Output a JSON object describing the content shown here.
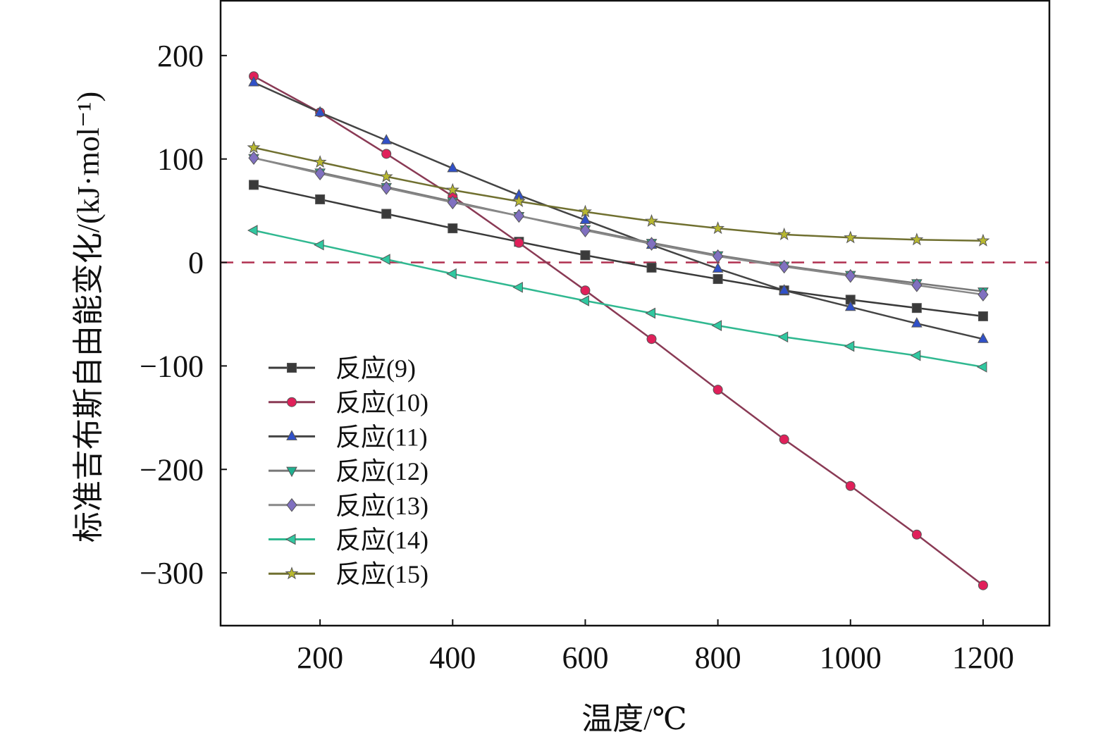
{
  "chart_data": {
    "type": "line",
    "title": "",
    "xlabel": "温度/℃",
    "ylabel": "标准吉布斯自由能变化/(kJ·mol⁻¹)",
    "xlim": [
      50,
      1300
    ],
    "ylim": [
      -351,
      253
    ],
    "xticks": [
      200,
      400,
      600,
      800,
      1000,
      1200
    ],
    "yticks": [
      200,
      100,
      0,
      -100,
      -200,
      -300
    ],
    "ytick_labels": [
      "200",
      "100",
      "0",
      "−100",
      "−200",
      "−300"
    ],
    "grid": false,
    "legend_position": "bottom-left",
    "reference_line": {
      "y": 0,
      "style": "dashed",
      "color": "#b03050"
    },
    "x": [
      100,
      200,
      300,
      400,
      500,
      600,
      700,
      800,
      900,
      1000,
      1100,
      1200
    ],
    "series": [
      {
        "name": "反应(9)",
        "marker": "square",
        "line_color": "#3a3a3a",
        "marker_color": "#3a3a3a",
        "values": [
          75,
          61,
          47,
          33,
          20,
          7,
          -5,
          -16,
          -27,
          -36,
          -44,
          -52
        ]
      },
      {
        "name": "反应(10)",
        "marker": "circle",
        "line_color": "#8a3a55",
        "marker_color": "#e0205a",
        "values": [
          180,
          145,
          105,
          64,
          19,
          -27,
          -74,
          -123,
          -171,
          -216,
          -263,
          -312
        ]
      },
      {
        "name": "反应(11)",
        "marker": "triangle-up",
        "line_color": "#444444",
        "marker_color": "#3050c8",
        "values": [
          174,
          145,
          118,
          91,
          65,
          41,
          17,
          -6,
          -27,
          -43,
          -59,
          -74
        ]
      },
      {
        "name": "反应(12)",
        "marker": "triangle-down",
        "line_color": "#777777",
        "marker_color": "#20b090",
        "values": [
          101,
          87,
          73,
          59,
          45,
          32,
          19,
          7,
          -3,
          -12,
          -20,
          -28
        ]
      },
      {
        "name": "反应(13)",
        "marker": "diamond",
        "line_color": "#888888",
        "marker_color": "#8070c0",
        "values": [
          101,
          86,
          72,
          58,
          45,
          31,
          18,
          6,
          -4,
          -13,
          -22,
          -31
        ]
      },
      {
        "name": "反应(14)",
        "marker": "triangle-left",
        "line_color": "#30b890",
        "marker_color": "#30c8a0",
        "values": [
          31,
          17,
          3,
          -11,
          -24,
          -37,
          -49,
          -61,
          -72,
          -81,
          -90,
          -101
        ]
      },
      {
        "name": "反应(15)",
        "marker": "star",
        "line_color": "#707030",
        "marker_color": "#b8b830",
        "values": [
          111,
          97,
          83,
          70,
          59,
          49,
          40,
          33,
          27,
          24,
          22,
          21
        ]
      }
    ]
  }
}
